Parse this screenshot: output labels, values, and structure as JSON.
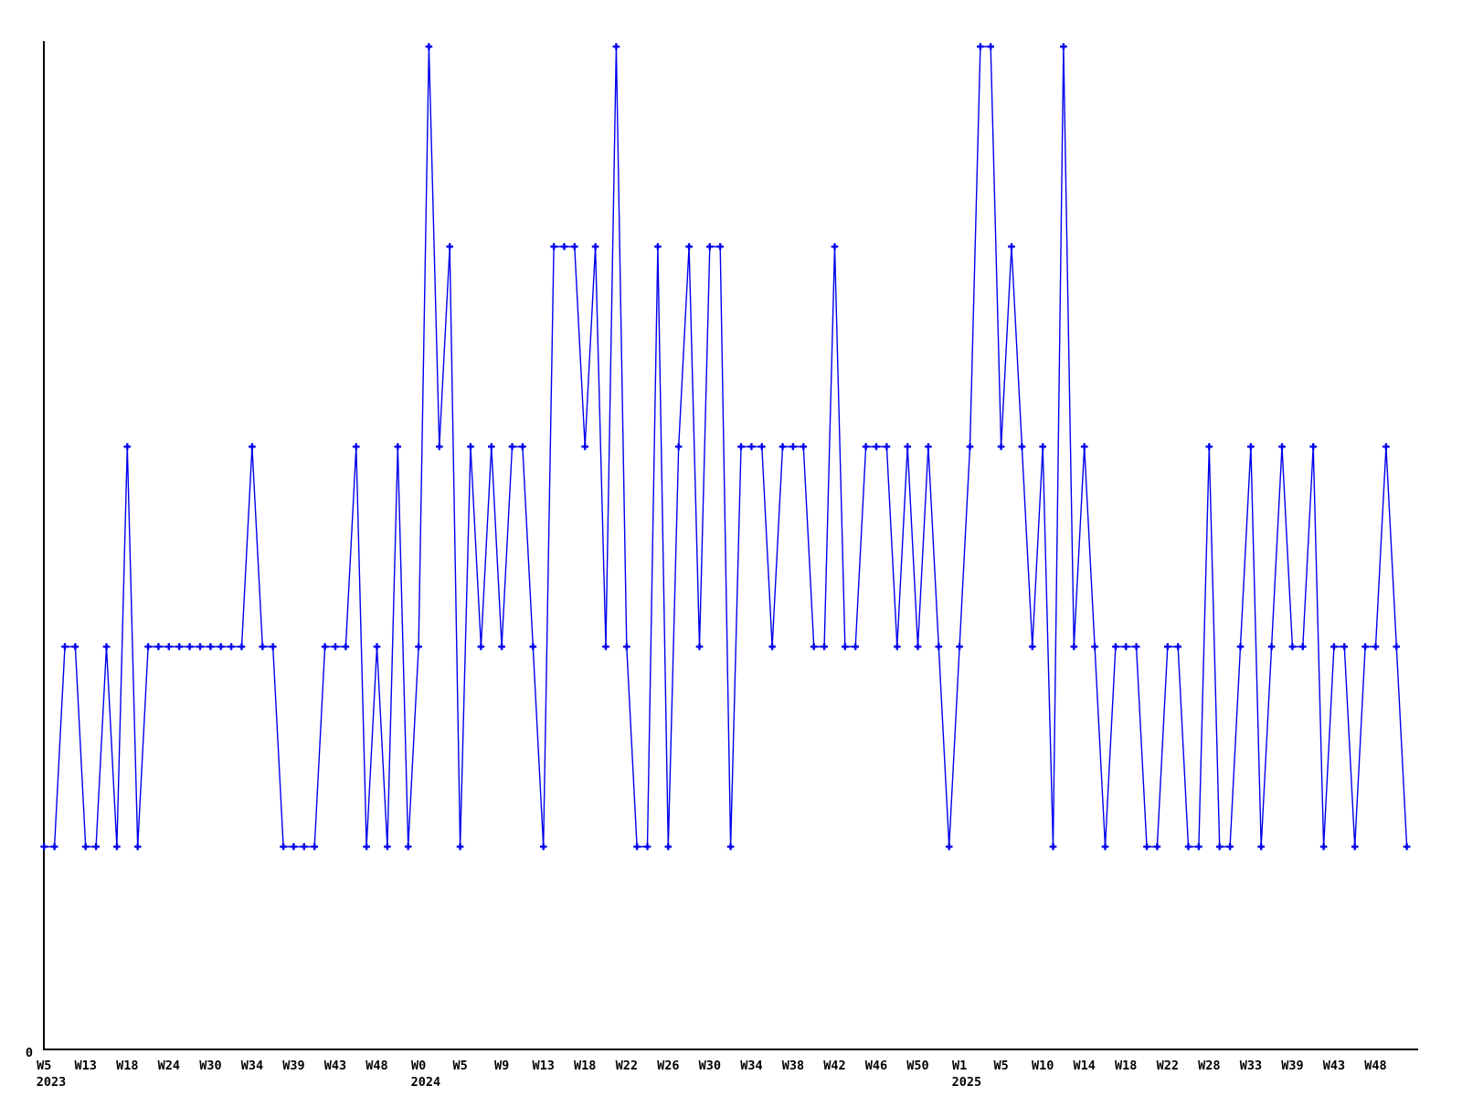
{
  "chart_data": {
    "type": "line",
    "description": "Weekly activity line chart (values 1-5 per week), single blue series with plus markers",
    "values": [
      1,
      1,
      2,
      2,
      1,
      1,
      2,
      1,
      3,
      1,
      2,
      2,
      2,
      2,
      2,
      2,
      2,
      2,
      2,
      2,
      3,
      2,
      2,
      1,
      1,
      1,
      1,
      2,
      2,
      2,
      3,
      1,
      2,
      1,
      3,
      1,
      2,
      5,
      3,
      4,
      1,
      3,
      2,
      3,
      2,
      3,
      3,
      2,
      1,
      4,
      4,
      4,
      3,
      4,
      2,
      5,
      2,
      1,
      1,
      4,
      1,
      3,
      4,
      2,
      4,
      4,
      1,
      3,
      3,
      3,
      2,
      3,
      3,
      3,
      2,
      2,
      4,
      2,
      2,
      3,
      3,
      3,
      2,
      3,
      2,
      3,
      2,
      1,
      2,
      3,
      5,
      5,
      3,
      4,
      3,
      2,
      3,
      1,
      5,
      2,
      3,
      2,
      1,
      2,
      2,
      2,
      1,
      1,
      2,
      2,
      1,
      1,
      3,
      1,
      1,
      2,
      3,
      1,
      2,
      3,
      2,
      2,
      3,
      1,
      2,
      2,
      1,
      2,
      2,
      3,
      2,
      1
    ],
    "x_tick_interval": 4,
    "x_ticks": [
      {
        "label": "W5",
        "year": "2023"
      },
      {
        "label": "W13"
      },
      {
        "label": "W18"
      },
      {
        "label": "W24"
      },
      {
        "label": "W30"
      },
      {
        "label": "W34"
      },
      {
        "label": "W39"
      },
      {
        "label": "W43"
      },
      {
        "label": "W48"
      },
      {
        "label": "W0",
        "year": "2024"
      },
      {
        "label": "W5"
      },
      {
        "label": "W9"
      },
      {
        "label": "W13"
      },
      {
        "label": "W18"
      },
      {
        "label": "W22"
      },
      {
        "label": "W26"
      },
      {
        "label": "W30"
      },
      {
        "label": "W34"
      },
      {
        "label": "W38"
      },
      {
        "label": "W42"
      },
      {
        "label": "W46"
      },
      {
        "label": "W50"
      },
      {
        "label": "W1",
        "year": "2025"
      },
      {
        "label": "W5"
      },
      {
        "label": "W10"
      },
      {
        "label": "W14"
      },
      {
        "label": "W18"
      },
      {
        "label": "W22"
      },
      {
        "label": "W28"
      },
      {
        "label": "W33"
      },
      {
        "label": "W39"
      },
      {
        "label": "W43"
      },
      {
        "label": "W48"
      }
    ],
    "y_axis": {
      "zero_label": "0",
      "ylim": [
        0,
        5
      ]
    },
    "grid": false,
    "legend": false,
    "marker": "plus",
    "colors": {
      "line": "#0000ee",
      "axis": "#000000",
      "labels": "#000000",
      "background": "#ffffff"
    }
  }
}
